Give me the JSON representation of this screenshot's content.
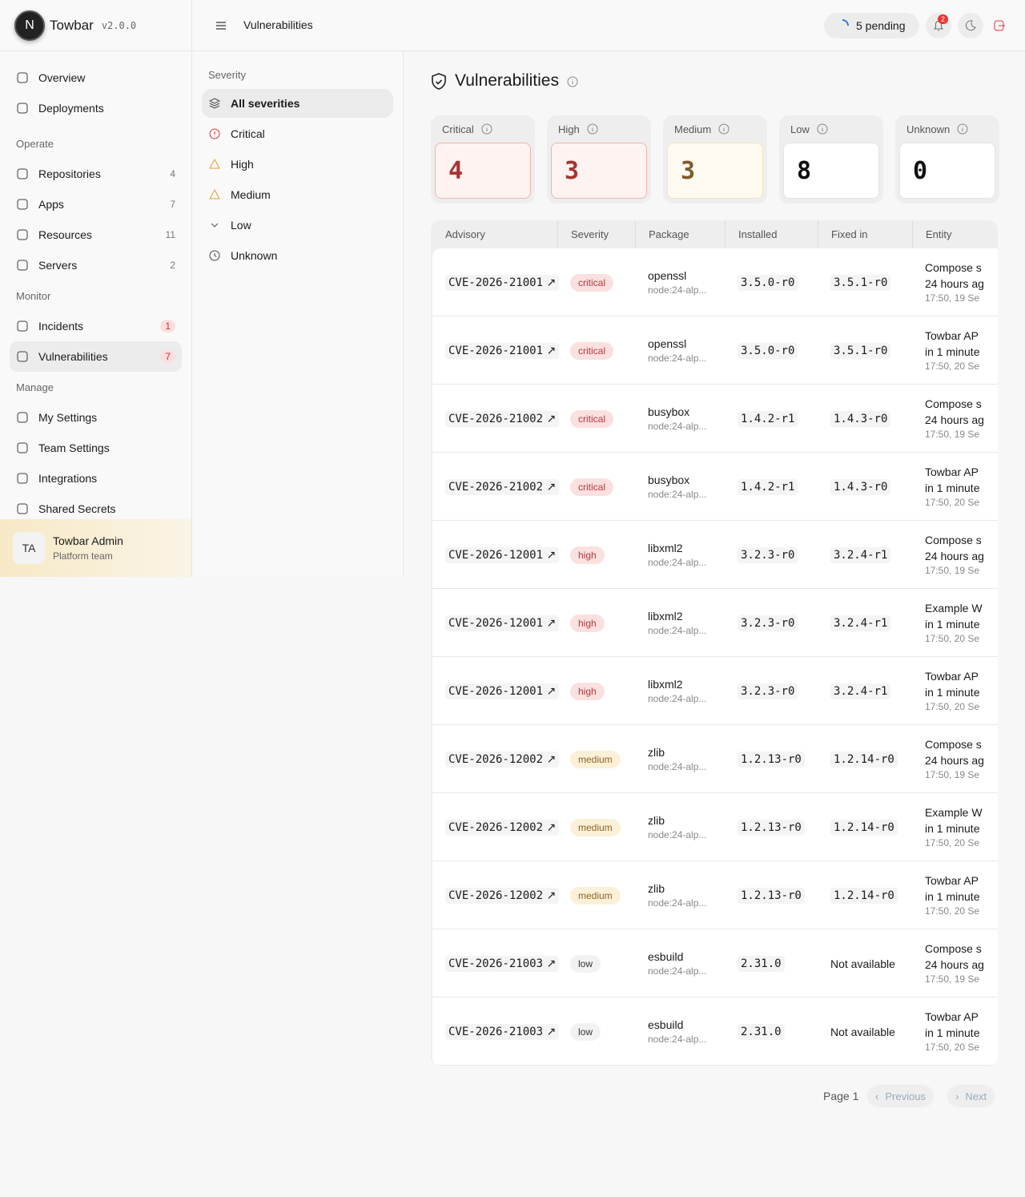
{
  "app": {
    "logo": "N",
    "name": "Towbar",
    "version": "v2.0.0"
  },
  "nav": {
    "sections": [
      {
        "items": [
          {
            "label": "Overview"
          },
          {
            "label": "Deployments"
          }
        ]
      },
      {
        "title": "Operate",
        "items": [
          {
            "label": "Repositories",
            "count": 4
          },
          {
            "label": "Apps",
            "count": 7
          },
          {
            "label": "Resources",
            "count": 11
          },
          {
            "label": "Servers",
            "count": 2
          }
        ]
      },
      {
        "title": "Monitor",
        "items": [
          {
            "label": "Incidents",
            "count": 1
          },
          {
            "label": "Vulnerabilities",
            "count": 7
          }
        ]
      },
      {
        "title": "Manage",
        "items": [
          {
            "label": "My Settings"
          },
          {
            "label": "Team Settings"
          },
          {
            "label": "Integrations"
          },
          {
            "label": "Shared Secrets"
          }
        ]
      }
    ]
  },
  "user": {
    "initials": "TA",
    "name": "Towbar Admin",
    "team": "Platform team"
  },
  "header": {
    "title": "Vulnerabilities",
    "pending": "5 pending",
    "notifications": 2
  },
  "filter": {
    "title": "Severity",
    "options": [
      "All severities",
      "Critical",
      "High",
      "Medium",
      "Low",
      "Unknown"
    ]
  },
  "page": {
    "title": "Vulnerabilities"
  },
  "summary": [
    {
      "label": "Critical",
      "count": 4
    },
    {
      "label": "High",
      "count": 3
    },
    {
      "label": "Medium",
      "count": 3
    },
    {
      "label": "Low",
      "count": 8
    },
    {
      "label": "Unknown",
      "count": 0
    }
  ],
  "table": {
    "columns": [
      "Advisory",
      "Severity",
      "Package",
      "Installed",
      "Fixed in",
      "Entity"
    ],
    "rows": [
      {
        "advisory": "CVE-2026-21001",
        "severity": "critical",
        "package": "openssl",
        "image": "node:24-alp...",
        "installed": "3.5.0-r0",
        "fixed": "3.5.1-r0",
        "entity": "Compose s",
        "age": "24 hours ag",
        "time": "17:50, 19 Se"
      },
      {
        "advisory": "CVE-2026-21001",
        "severity": "critical",
        "package": "openssl",
        "image": "node:24-alp...",
        "installed": "3.5.0-r0",
        "fixed": "3.5.1-r0",
        "entity": "Towbar AP",
        "age": "in 1 minute",
        "time": "17:50, 20 Se"
      },
      {
        "advisory": "CVE-2026-21002",
        "severity": "critical",
        "package": "busybox",
        "image": "node:24-alp...",
        "installed": "1.4.2-r1",
        "fixed": "1.4.3-r0",
        "entity": "Compose s",
        "age": "24 hours ag",
        "time": "17:50, 19 Se"
      },
      {
        "advisory": "CVE-2026-21002",
        "severity": "critical",
        "package": "busybox",
        "image": "node:24-alp...",
        "installed": "1.4.2-r1",
        "fixed": "1.4.3-r0",
        "entity": "Towbar AP",
        "age": "in 1 minute",
        "time": "17:50, 20 Se"
      },
      {
        "advisory": "CVE-2026-12001",
        "severity": "high",
        "package": "libxml2",
        "image": "node:24-alp...",
        "installed": "3.2.3-r0",
        "fixed": "3.2.4-r1",
        "entity": "Compose s",
        "age": "24 hours ag",
        "time": "17:50, 19 Se"
      },
      {
        "advisory": "CVE-2026-12001",
        "severity": "high",
        "package": "libxml2",
        "image": "node:24-alp...",
        "installed": "3.2.3-r0",
        "fixed": "3.2.4-r1",
        "entity": "Example W",
        "age": "in 1 minute",
        "time": "17:50, 20 Se"
      },
      {
        "advisory": "CVE-2026-12001",
        "severity": "high",
        "package": "libxml2",
        "image": "node:24-alp...",
        "installed": "3.2.3-r0",
        "fixed": "3.2.4-r1",
        "entity": "Towbar AP",
        "age": "in 1 minute",
        "time": "17:50, 20 Se"
      },
      {
        "advisory": "CVE-2026-12002",
        "severity": "medium",
        "package": "zlib",
        "image": "node:24-alp...",
        "installed": "1.2.13-r0",
        "fixed": "1.2.14-r0",
        "entity": "Compose s",
        "age": "24 hours ag",
        "time": "17:50, 19 Se"
      },
      {
        "advisory": "CVE-2026-12002",
        "severity": "medium",
        "package": "zlib",
        "image": "node:24-alp...",
        "installed": "1.2.13-r0",
        "fixed": "1.2.14-r0",
        "entity": "Example W",
        "age": "in 1 minute",
        "time": "17:50, 20 Se"
      },
      {
        "advisory": "CVE-2026-12002",
        "severity": "medium",
        "package": "zlib",
        "image": "node:24-alp...",
        "installed": "1.2.13-r0",
        "fixed": "1.2.14-r0",
        "entity": "Towbar AP",
        "age": "in 1 minute",
        "time": "17:50, 20 Se"
      },
      {
        "advisory": "CVE-2026-21003",
        "severity": "low",
        "package": "esbuild",
        "image": "node:24-alp...",
        "installed": "2.31.0",
        "fixed": "Not available",
        "entity": "Compose s",
        "age": "24 hours ag",
        "time": "17:50, 19 Se"
      },
      {
        "advisory": "CVE-2026-21003",
        "severity": "low",
        "package": "esbuild",
        "image": "node:24-alp...",
        "installed": "2.31.0",
        "fixed": "Not available",
        "entity": "Towbar AP",
        "age": "in 1 minute",
        "time": "17:50, 20 Se"
      }
    ]
  },
  "pagination": {
    "page": "Page 1",
    "previous": "Previous",
    "next": "Next"
  }
}
